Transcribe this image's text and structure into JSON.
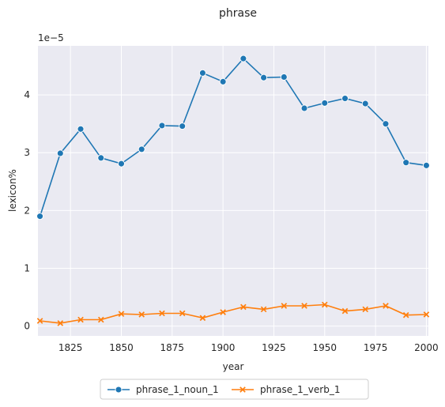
{
  "chart_data": {
    "type": "line",
    "title": "phrase",
    "xlabel": "year",
    "ylabel": "lexicon%",
    "offset_label": "1e−5",
    "x": [
      1810,
      1820,
      1830,
      1840,
      1850,
      1860,
      1870,
      1880,
      1890,
      1900,
      1910,
      1920,
      1930,
      1940,
      1950,
      1960,
      1970,
      1980,
      1990,
      2000
    ],
    "xlim": [
      1809,
      2001
    ],
    "ylim": [
      -0.17,
      4.85
    ],
    "x_ticks": [
      1825,
      1850,
      1875,
      1900,
      1925,
      1950,
      1975,
      2000
    ],
    "y_ticks": [
      0,
      1,
      2,
      3,
      4
    ],
    "grid": true,
    "legend_position": "bottom-center",
    "series": [
      {
        "name": "phrase_1_noun_1",
        "color": "#1f77b4",
        "marker": "circle",
        "values": [
          1.9,
          2.99,
          3.41,
          2.91,
          2.81,
          3.06,
          3.47,
          3.46,
          4.38,
          4.23,
          4.63,
          4.3,
          4.31,
          3.77,
          3.86,
          3.94,
          3.85,
          3.5,
          2.83,
          2.78
        ]
      },
      {
        "name": "phrase_1_verb_1",
        "color": "#ff7f0e",
        "marker": "x",
        "values": [
          0.09,
          0.05,
          0.11,
          0.11,
          0.21,
          0.2,
          0.22,
          0.22,
          0.14,
          0.24,
          0.33,
          0.29,
          0.35,
          0.35,
          0.37,
          0.26,
          0.29,
          0.35,
          0.19,
          0.2
        ]
      }
    ]
  }
}
